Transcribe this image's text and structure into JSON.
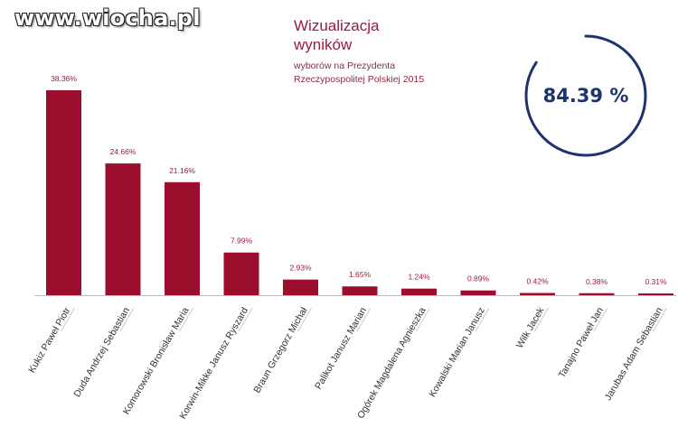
{
  "watermark": "www.wiocha.pl",
  "header": {
    "title": "Wizualizacja wyników",
    "subtitle": "wyborów na Prezydenta Rzeczypospolitej Polskiej 2015"
  },
  "gauge": {
    "value": 84.39,
    "label": "84.39 %",
    "color": "#1c3370"
  },
  "colors": {
    "bar": "#9b0e2e",
    "label": "#9b1b3a",
    "axis": "#bbbbbb"
  },
  "chart_data": {
    "type": "bar",
    "categories": [
      "Kukiz Paweł Piotr",
      "Duda Andrzej Sebastian",
      "Komorowski Bronisław Maria",
      "Korwin-Mikke Janusz Ryszard",
      "Braun Grzegorz Michał",
      "Palikot Janusz Marian",
      "Ogórek Magdalena Agnieszka",
      "Kowalski Marian Janusz",
      "Wilk Jacek",
      "Tanajno Paweł Jan",
      "Jarubas Adam Sebastian"
    ],
    "values": [
      38.36,
      24.66,
      21.16,
      7.99,
      2.93,
      1.65,
      1.24,
      0.89,
      0.42,
      0.38,
      0.31
    ],
    "value_labels": [
      "38.36%",
      "24.66%",
      "21.16%",
      "7.99%",
      "2.93%",
      "1.65%",
      "1.24%",
      "0.89%",
      "0.42%",
      "0.38%",
      "0.31%"
    ],
    "ylim": [
      0,
      38.36
    ],
    "grid": false,
    "legend": "none"
  }
}
